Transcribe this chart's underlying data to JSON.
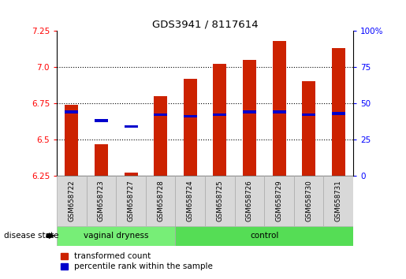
{
  "title": "GDS3941 / 8117614",
  "samples": [
    "GSM658722",
    "GSM658723",
    "GSM658727",
    "GSM658728",
    "GSM658724",
    "GSM658725",
    "GSM658726",
    "GSM658729",
    "GSM658730",
    "GSM658731"
  ],
  "n_vaginal": 4,
  "n_control": 6,
  "red_values": [
    6.74,
    6.47,
    6.27,
    6.8,
    6.92,
    7.02,
    7.05,
    7.18,
    6.9,
    7.13
  ],
  "blue_values": [
    6.69,
    6.63,
    6.59,
    6.67,
    6.66,
    6.67,
    6.69,
    6.69,
    6.67,
    6.68
  ],
  "y_min": 6.25,
  "y_max": 7.25,
  "y_ticks_left": [
    6.25,
    6.5,
    6.75,
    7.0,
    7.25
  ],
  "y_ticks_right": [
    0,
    25,
    50,
    75,
    100
  ],
  "bar_color": "#cc2200",
  "dot_color": "#0000cc",
  "vaginal_color": "#77ee77",
  "control_color": "#55dd55",
  "disease_state_label": "disease state",
  "legend_red": "transformed count",
  "legend_blue": "percentile rank within the sample",
  "bar_bottom": 6.25,
  "bar_width": 0.45
}
